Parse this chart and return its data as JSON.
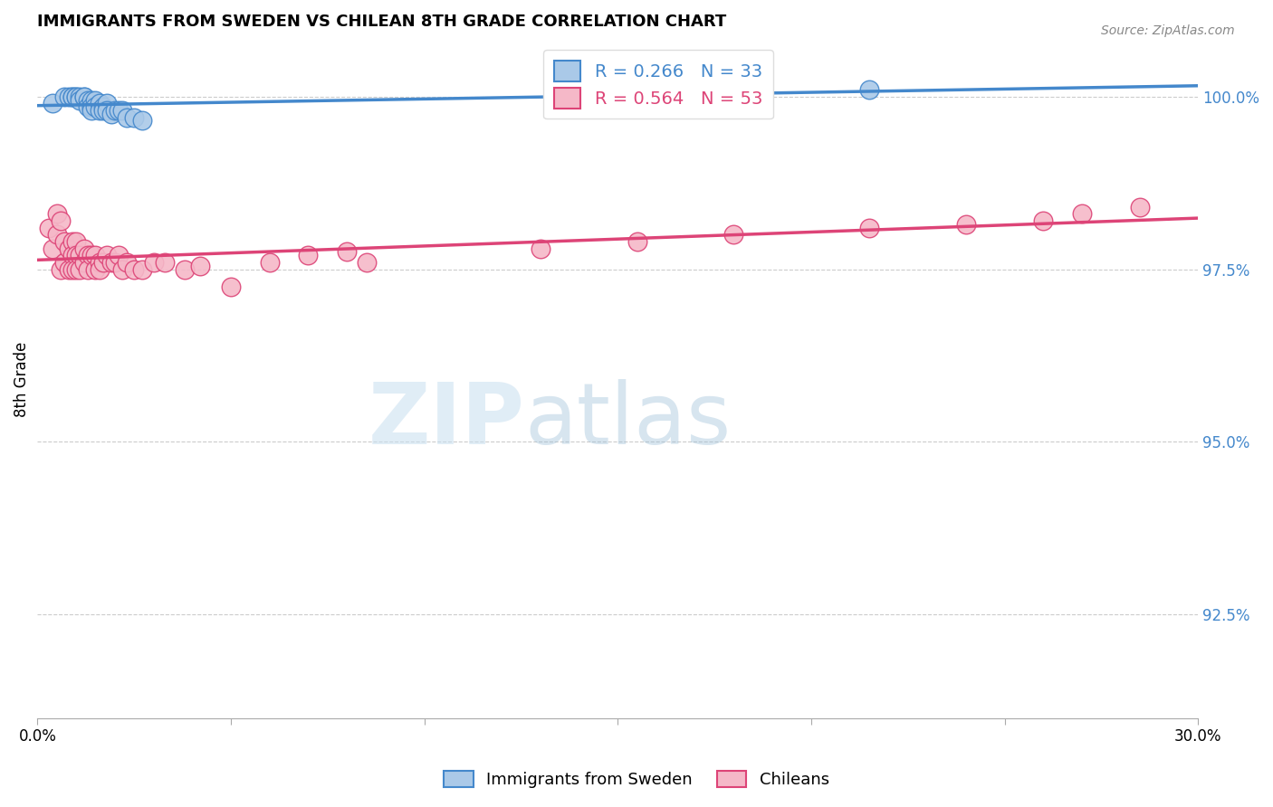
{
  "title": "IMMIGRANTS FROM SWEDEN VS CHILEAN 8TH GRADE CORRELATION CHART",
  "source": "Source: ZipAtlas.com",
  "ylabel": "8th Grade",
  "ytick_labels": [
    "100.0%",
    "97.5%",
    "95.0%",
    "92.5%"
  ],
  "ytick_values": [
    1.0,
    0.975,
    0.95,
    0.925
  ],
  "xmin": 0.0,
  "xmax": 0.3,
  "ymin": 0.91,
  "ymax": 1.008,
  "legend1_label": "R = 0.266   N = 33",
  "legend2_label": "R = 0.564   N = 53",
  "sweden_color": "#aac9e8",
  "chilean_color": "#f5b8c8",
  "sweden_line_color": "#4488cc",
  "chilean_line_color": "#dd4477",
  "sweden_x": [
    0.004,
    0.007,
    0.008,
    0.009,
    0.009,
    0.01,
    0.01,
    0.011,
    0.011,
    0.012,
    0.012,
    0.013,
    0.013,
    0.014,
    0.014,
    0.014,
    0.015,
    0.015,
    0.016,
    0.016,
    0.017,
    0.017,
    0.018,
    0.018,
    0.019,
    0.02,
    0.021,
    0.022,
    0.023,
    0.025,
    0.027,
    0.17,
    0.215
  ],
  "sweden_y": [
    0.999,
    1.0,
    1.0,
    1.0,
    1.0,
    1.0,
    1.0,
    1.0,
    0.9995,
    1.0,
    1.0,
    0.9995,
    0.9985,
    0.9995,
    0.9985,
    0.998,
    0.9995,
    0.9985,
    0.999,
    0.998,
    0.9985,
    0.998,
    0.999,
    0.998,
    0.9975,
    0.998,
    0.998,
    0.998,
    0.997,
    0.997,
    0.9965,
    1.001,
    1.001
  ],
  "chilean_x": [
    0.003,
    0.004,
    0.005,
    0.005,
    0.006,
    0.006,
    0.007,
    0.007,
    0.008,
    0.008,
    0.009,
    0.009,
    0.009,
    0.01,
    0.01,
    0.01,
    0.011,
    0.011,
    0.012,
    0.012,
    0.013,
    0.013,
    0.014,
    0.015,
    0.015,
    0.016,
    0.016,
    0.017,
    0.018,
    0.019,
    0.02,
    0.021,
    0.022,
    0.023,
    0.025,
    0.027,
    0.03,
    0.033,
    0.038,
    0.042,
    0.05,
    0.06,
    0.07,
    0.08,
    0.085,
    0.13,
    0.155,
    0.18,
    0.215,
    0.24,
    0.26,
    0.27,
    0.285
  ],
  "chilean_y": [
    0.981,
    0.978,
    0.98,
    0.983,
    0.982,
    0.975,
    0.979,
    0.976,
    0.978,
    0.975,
    0.979,
    0.977,
    0.975,
    0.979,
    0.977,
    0.975,
    0.977,
    0.975,
    0.978,
    0.976,
    0.977,
    0.975,
    0.977,
    0.977,
    0.975,
    0.976,
    0.975,
    0.976,
    0.977,
    0.976,
    0.976,
    0.977,
    0.975,
    0.976,
    0.975,
    0.975,
    0.976,
    0.976,
    0.975,
    0.9755,
    0.9725,
    0.976,
    0.977,
    0.9775,
    0.976,
    0.978,
    0.979,
    0.98,
    0.981,
    0.9815,
    0.982,
    0.983,
    0.984
  ],
  "watermark_zip": "ZIP",
  "watermark_atlas": "atlas",
  "bottom_legend_sweden": "Immigrants from Sweden",
  "bottom_legend_chilean": "Chileans"
}
